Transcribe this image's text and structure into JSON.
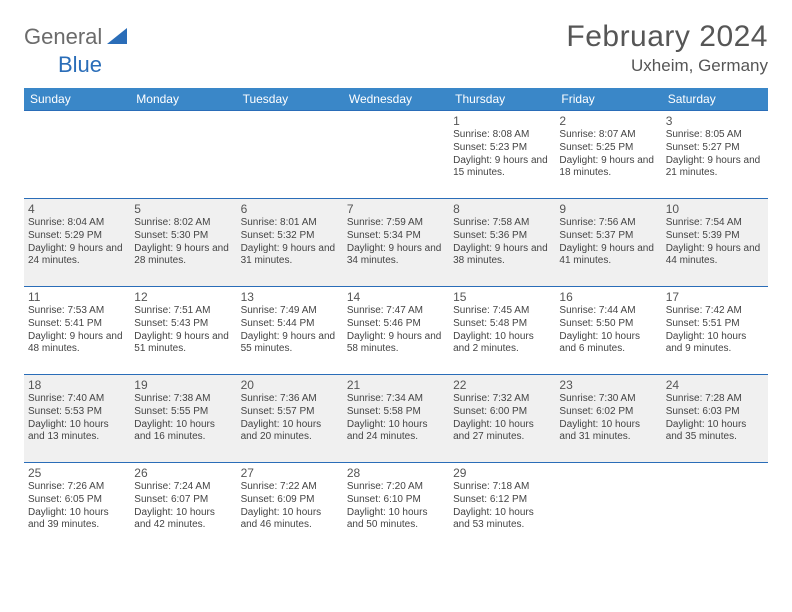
{
  "logo": {
    "general": "General",
    "blue": "Blue"
  },
  "month_title": "February 2024",
  "location": "Uxheim, Germany",
  "colors": {
    "header_bg": "#3a87c8",
    "header_text": "#ffffff",
    "row_border": "#2a6db8",
    "even_row_bg": "#f0f0f0",
    "odd_row_bg": "#ffffff",
    "logo_blue": "#2a6db8",
    "logo_gray": "#6b6b6b"
  },
  "weekdays": [
    "Sunday",
    "Monday",
    "Tuesday",
    "Wednesday",
    "Thursday",
    "Friday",
    "Saturday"
  ],
  "weeks": [
    [
      {},
      {},
      {},
      {},
      {
        "day": "1",
        "sunrise": "Sunrise: 8:08 AM",
        "sunset": "Sunset: 5:23 PM",
        "daylight": "Daylight: 9 hours and 15 minutes."
      },
      {
        "day": "2",
        "sunrise": "Sunrise: 8:07 AM",
        "sunset": "Sunset: 5:25 PM",
        "daylight": "Daylight: 9 hours and 18 minutes."
      },
      {
        "day": "3",
        "sunrise": "Sunrise: 8:05 AM",
        "sunset": "Sunset: 5:27 PM",
        "daylight": "Daylight: 9 hours and 21 minutes."
      }
    ],
    [
      {
        "day": "4",
        "sunrise": "Sunrise: 8:04 AM",
        "sunset": "Sunset: 5:29 PM",
        "daylight": "Daylight: 9 hours and 24 minutes."
      },
      {
        "day": "5",
        "sunrise": "Sunrise: 8:02 AM",
        "sunset": "Sunset: 5:30 PM",
        "daylight": "Daylight: 9 hours and 28 minutes."
      },
      {
        "day": "6",
        "sunrise": "Sunrise: 8:01 AM",
        "sunset": "Sunset: 5:32 PM",
        "daylight": "Daylight: 9 hours and 31 minutes."
      },
      {
        "day": "7",
        "sunrise": "Sunrise: 7:59 AM",
        "sunset": "Sunset: 5:34 PM",
        "daylight": "Daylight: 9 hours and 34 minutes."
      },
      {
        "day": "8",
        "sunrise": "Sunrise: 7:58 AM",
        "sunset": "Sunset: 5:36 PM",
        "daylight": "Daylight: 9 hours and 38 minutes."
      },
      {
        "day": "9",
        "sunrise": "Sunrise: 7:56 AM",
        "sunset": "Sunset: 5:37 PM",
        "daylight": "Daylight: 9 hours and 41 minutes."
      },
      {
        "day": "10",
        "sunrise": "Sunrise: 7:54 AM",
        "sunset": "Sunset: 5:39 PM",
        "daylight": "Daylight: 9 hours and 44 minutes."
      }
    ],
    [
      {
        "day": "11",
        "sunrise": "Sunrise: 7:53 AM",
        "sunset": "Sunset: 5:41 PM",
        "daylight": "Daylight: 9 hours and 48 minutes."
      },
      {
        "day": "12",
        "sunrise": "Sunrise: 7:51 AM",
        "sunset": "Sunset: 5:43 PM",
        "daylight": "Daylight: 9 hours and 51 minutes."
      },
      {
        "day": "13",
        "sunrise": "Sunrise: 7:49 AM",
        "sunset": "Sunset: 5:44 PM",
        "daylight": "Daylight: 9 hours and 55 minutes."
      },
      {
        "day": "14",
        "sunrise": "Sunrise: 7:47 AM",
        "sunset": "Sunset: 5:46 PM",
        "daylight": "Daylight: 9 hours and 58 minutes."
      },
      {
        "day": "15",
        "sunrise": "Sunrise: 7:45 AM",
        "sunset": "Sunset: 5:48 PM",
        "daylight": "Daylight: 10 hours and 2 minutes."
      },
      {
        "day": "16",
        "sunrise": "Sunrise: 7:44 AM",
        "sunset": "Sunset: 5:50 PM",
        "daylight": "Daylight: 10 hours and 6 minutes."
      },
      {
        "day": "17",
        "sunrise": "Sunrise: 7:42 AM",
        "sunset": "Sunset: 5:51 PM",
        "daylight": "Daylight: 10 hours and 9 minutes."
      }
    ],
    [
      {
        "day": "18",
        "sunrise": "Sunrise: 7:40 AM",
        "sunset": "Sunset: 5:53 PM",
        "daylight": "Daylight: 10 hours and 13 minutes."
      },
      {
        "day": "19",
        "sunrise": "Sunrise: 7:38 AM",
        "sunset": "Sunset: 5:55 PM",
        "daylight": "Daylight: 10 hours and 16 minutes."
      },
      {
        "day": "20",
        "sunrise": "Sunrise: 7:36 AM",
        "sunset": "Sunset: 5:57 PM",
        "daylight": "Daylight: 10 hours and 20 minutes."
      },
      {
        "day": "21",
        "sunrise": "Sunrise: 7:34 AM",
        "sunset": "Sunset: 5:58 PM",
        "daylight": "Daylight: 10 hours and 24 minutes."
      },
      {
        "day": "22",
        "sunrise": "Sunrise: 7:32 AM",
        "sunset": "Sunset: 6:00 PM",
        "daylight": "Daylight: 10 hours and 27 minutes."
      },
      {
        "day": "23",
        "sunrise": "Sunrise: 7:30 AM",
        "sunset": "Sunset: 6:02 PM",
        "daylight": "Daylight: 10 hours and 31 minutes."
      },
      {
        "day": "24",
        "sunrise": "Sunrise: 7:28 AM",
        "sunset": "Sunset: 6:03 PM",
        "daylight": "Daylight: 10 hours and 35 minutes."
      }
    ],
    [
      {
        "day": "25",
        "sunrise": "Sunrise: 7:26 AM",
        "sunset": "Sunset: 6:05 PM",
        "daylight": "Daylight: 10 hours and 39 minutes."
      },
      {
        "day": "26",
        "sunrise": "Sunrise: 7:24 AM",
        "sunset": "Sunset: 6:07 PM",
        "daylight": "Daylight: 10 hours and 42 minutes."
      },
      {
        "day": "27",
        "sunrise": "Sunrise: 7:22 AM",
        "sunset": "Sunset: 6:09 PM",
        "daylight": "Daylight: 10 hours and 46 minutes."
      },
      {
        "day": "28",
        "sunrise": "Sunrise: 7:20 AM",
        "sunset": "Sunset: 6:10 PM",
        "daylight": "Daylight: 10 hours and 50 minutes."
      },
      {
        "day": "29",
        "sunrise": "Sunrise: 7:18 AM",
        "sunset": "Sunset: 6:12 PM",
        "daylight": "Daylight: 10 hours and 53 minutes."
      },
      {},
      {}
    ]
  ]
}
